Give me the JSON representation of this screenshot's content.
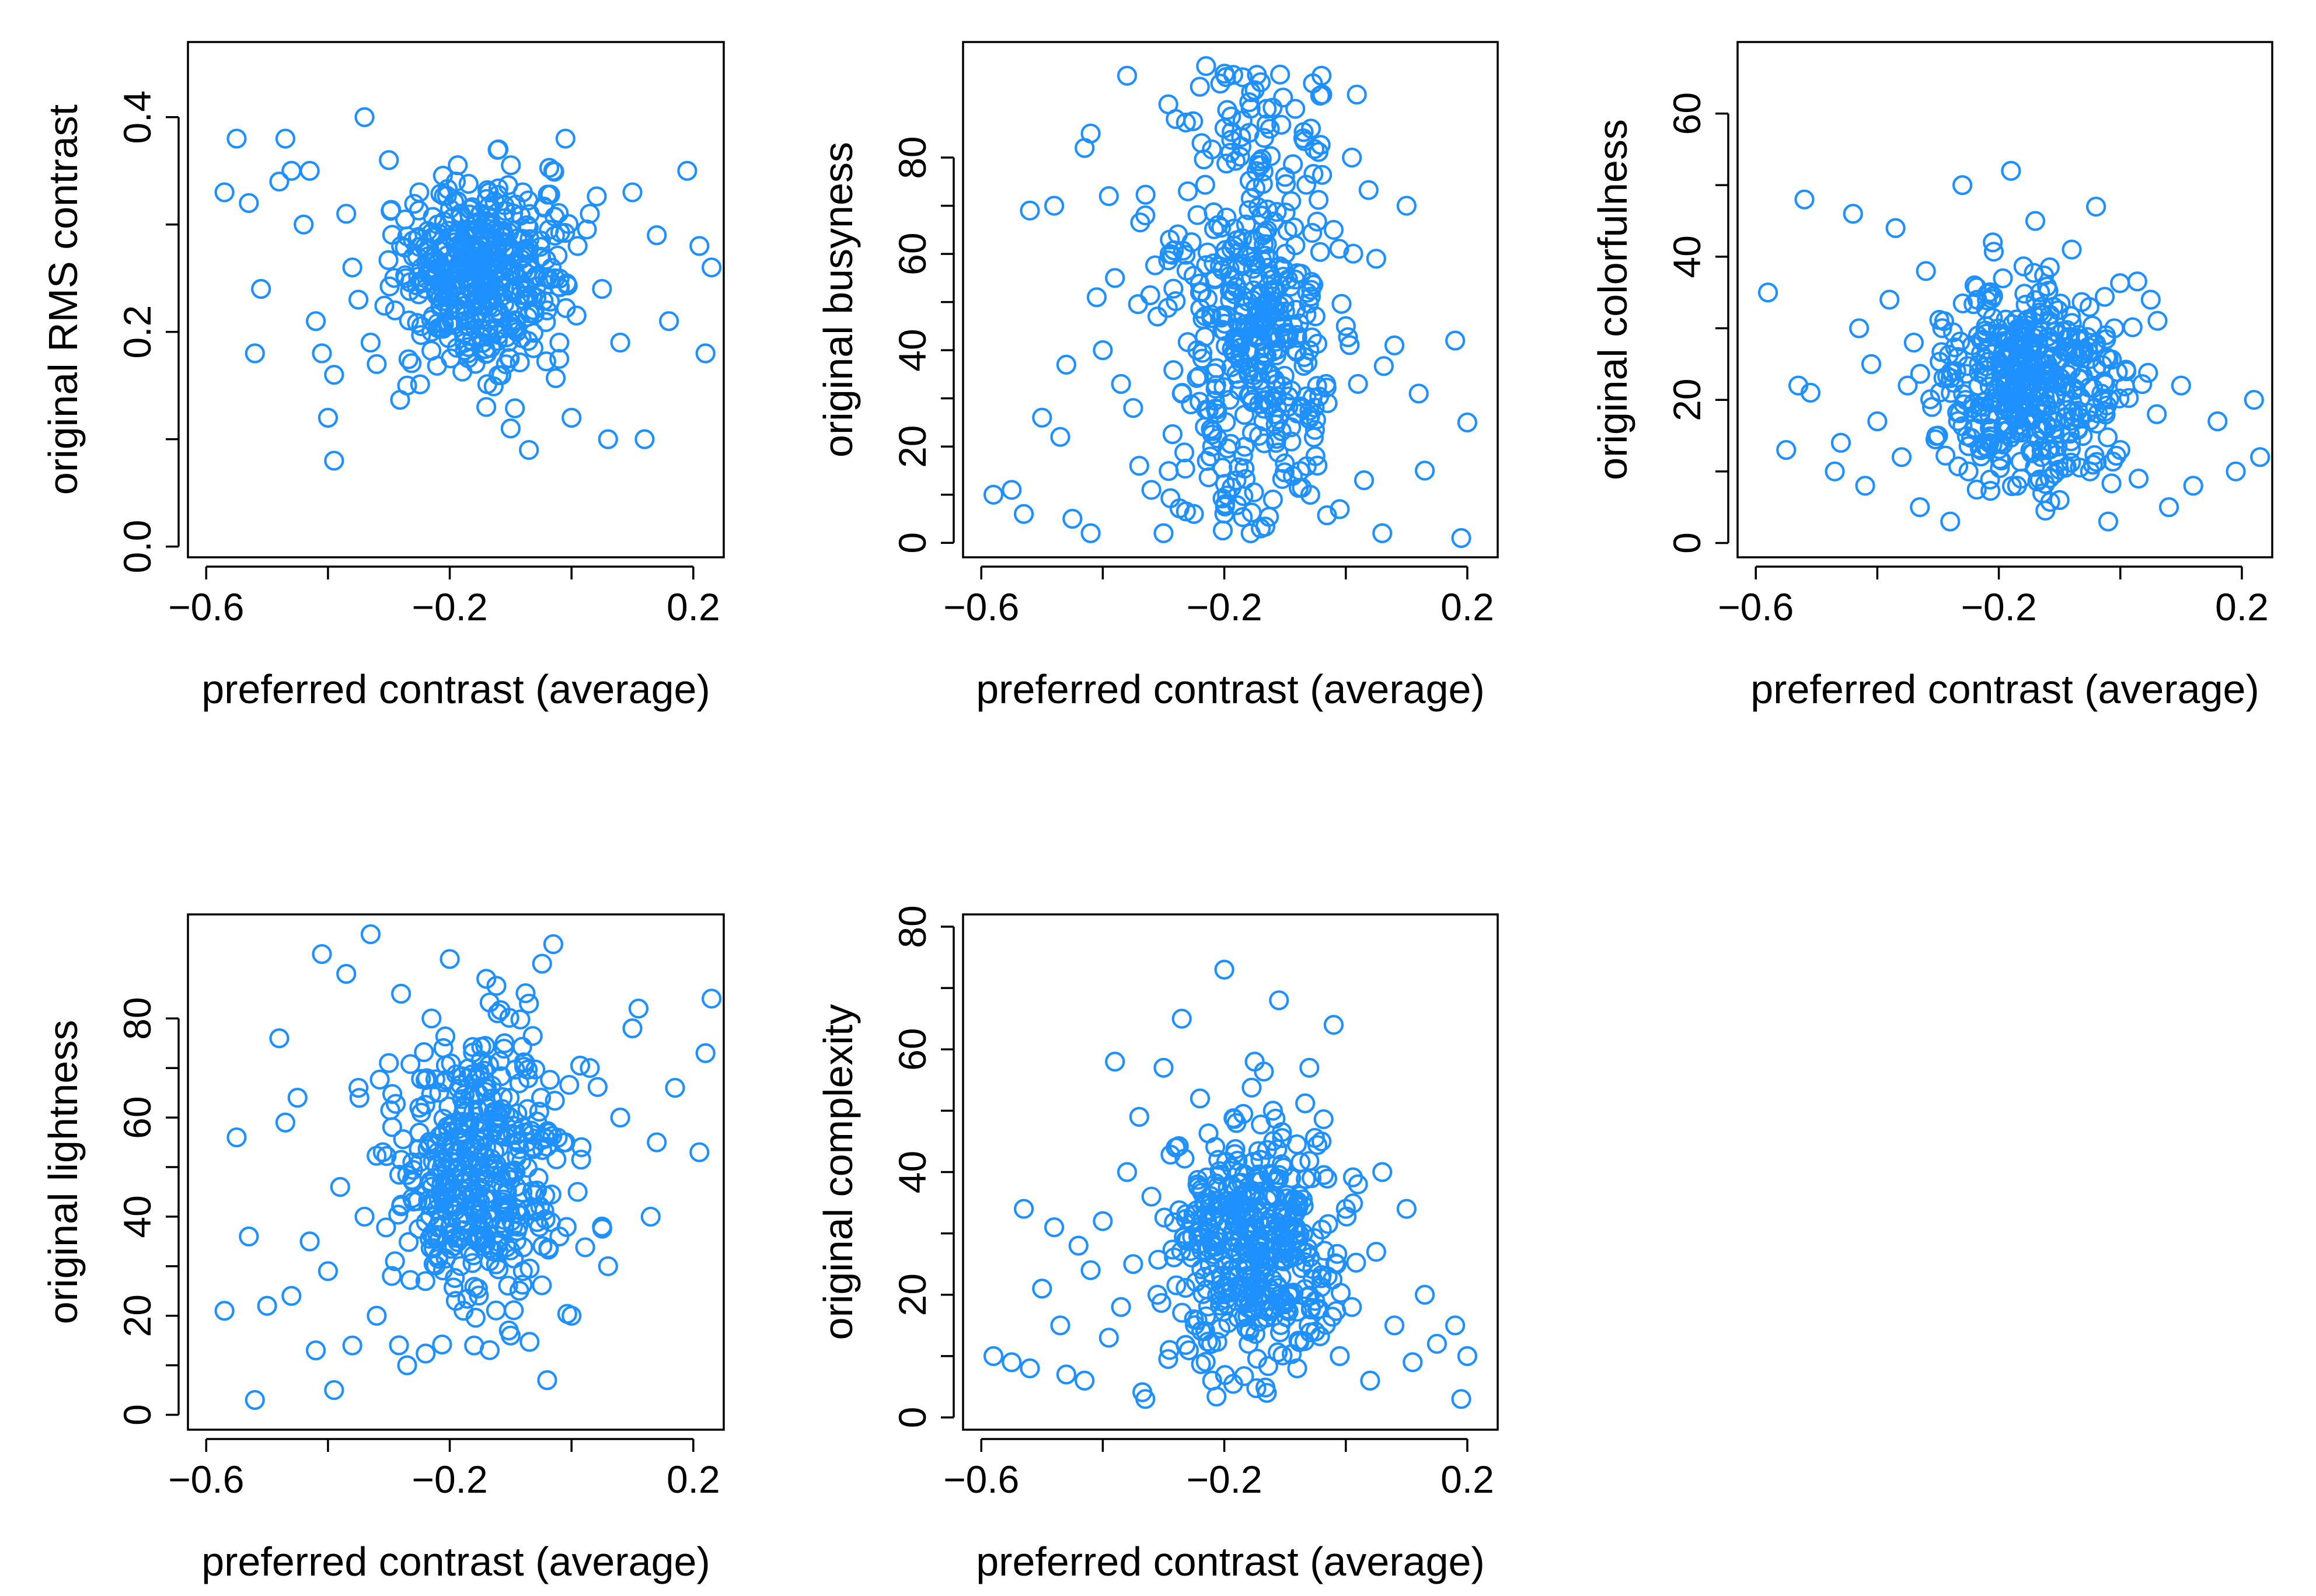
{
  "colors": {
    "point": "#1e90ff",
    "axis": "#000000",
    "background": "#ffffff"
  },
  "chart_data": [
    {
      "type": "scatter",
      "title": "",
      "xlabel": "preferred contrast (average)",
      "ylabel": "original RMS contrast",
      "xlim": [
        -0.63,
        0.25
      ],
      "ylim": [
        -0.01,
        0.47
      ],
      "xticks": [
        -0.6,
        -0.2,
        0.2
      ],
      "xtick_labels": [
        "−0.6",
        "−0.2",
        "0.2"
      ],
      "yticks": [
        0.0,
        0.2,
        0.4
      ],
      "ytick_labels": [
        "0.0",
        "0.2",
        "0.4"
      ],
      "sampled_points": [
        [
          -0.57,
          0.33
        ],
        [
          -0.55,
          0.38
        ],
        [
          -0.53,
          0.32
        ],
        [
          -0.52,
          0.18
        ],
        [
          -0.51,
          0.24
        ],
        [
          -0.48,
          0.34
        ],
        [
          -0.47,
          0.38
        ],
        [
          -0.46,
          0.35
        ],
        [
          -0.44,
          0.3
        ],
        [
          -0.43,
          0.35
        ],
        [
          -0.42,
          0.21
        ],
        [
          -0.41,
          0.18
        ],
        [
          -0.4,
          0.12
        ],
        [
          -0.39,
          0.08
        ],
        [
          -0.39,
          0.16
        ],
        [
          -0.37,
          0.31
        ],
        [
          -0.36,
          0.26
        ],
        [
          -0.35,
          0.23
        ],
        [
          -0.34,
          0.4
        ],
        [
          -0.33,
          0.19
        ],
        [
          -0.32,
          0.17
        ],
        [
          -0.3,
          0.36
        ],
        [
          -0.29,
          0.22
        ],
        [
          -0.28,
          0.28
        ],
        [
          -0.27,
          0.15
        ],
        [
          -0.26,
          0.27
        ],
        [
          -0.25,
          0.33
        ],
        [
          -0.24,
          0.24
        ],
        [
          -0.23,
          0.2
        ],
        [
          -0.22,
          0.3
        ],
        [
          -0.21,
          0.25
        ],
        [
          -0.2,
          0.22
        ],
        [
          -0.19,
          0.34
        ],
        [
          -0.18,
          0.28
        ],
        [
          -0.17,
          0.18
        ],
        [
          -0.16,
          0.26
        ],
        [
          -0.15,
          0.31
        ],
        [
          -0.14,
          0.13
        ],
        [
          -0.13,
          0.23
        ],
        [
          -0.12,
          0.37
        ],
        [
          -0.11,
          0.29
        ],
        [
          -0.1,
          0.11
        ],
        [
          -0.09,
          0.2
        ],
        [
          -0.08,
          0.33
        ],
        [
          -0.07,
          0.09
        ],
        [
          -0.06,
          0.25
        ],
        [
          -0.05,
          0.27
        ],
        [
          -0.04,
          0.22
        ],
        [
          -0.03,
          0.35
        ],
        [
          -0.02,
          0.19
        ],
        [
          -0.01,
          0.38
        ],
        [
          0.0,
          0.12
        ],
        [
          0.01,
          0.28
        ],
        [
          0.03,
          0.31
        ],
        [
          0.05,
          0.24
        ],
        [
          0.06,
          0.1
        ],
        [
          0.08,
          0.19
        ],
        [
          0.1,
          0.33
        ],
        [
          0.12,
          0.1
        ],
        [
          0.14,
          0.29
        ],
        [
          0.16,
          0.21
        ],
        [
          0.19,
          0.35
        ],
        [
          0.21,
          0.28
        ],
        [
          0.22,
          0.18
        ],
        [
          0.23,
          0.26
        ]
      ]
    },
    {
      "type": "scatter",
      "title": "",
      "xlabel": "preferred contrast (average)",
      "ylabel": "original busyness",
      "xlim": [
        -0.63,
        0.25
      ],
      "ylim": [
        -3,
        104
      ],
      "xticks": [
        -0.6,
        -0.2,
        0.2
      ],
      "xtick_labels": [
        "−0.6",
        "−0.2",
        "0.2"
      ],
      "yticks": [
        0,
        20,
        40,
        60,
        80
      ],
      "ytick_labels": [
        "0",
        "20",
        "40",
        "60",
        "80"
      ],
      "sampled_points": [
        [
          -0.58,
          10
        ],
        [
          -0.55,
          11
        ],
        [
          -0.53,
          6
        ],
        [
          -0.52,
          69
        ],
        [
          -0.5,
          26
        ],
        [
          -0.48,
          70
        ],
        [
          -0.47,
          22
        ],
        [
          -0.46,
          37
        ],
        [
          -0.45,
          5
        ],
        [
          -0.43,
          82
        ],
        [
          -0.42,
          85
        ],
        [
          -0.42,
          2
        ],
        [
          -0.41,
          51
        ],
        [
          -0.4,
          40
        ],
        [
          -0.39,
          72
        ],
        [
          -0.38,
          55
        ],
        [
          -0.37,
          33
        ],
        [
          -0.36,
          97
        ],
        [
          -0.35,
          28
        ],
        [
          -0.34,
          16
        ],
        [
          -0.33,
          68
        ],
        [
          -0.32,
          11
        ],
        [
          -0.31,
          47
        ],
        [
          -0.3,
          2
        ],
        [
          -0.29,
          60
        ],
        [
          -0.28,
          88
        ],
        [
          -0.27,
          31
        ],
        [
          -0.26,
          73
        ],
        [
          -0.25,
          6
        ],
        [
          -0.24,
          52
        ],
        [
          -0.23,
          99
        ],
        [
          -0.22,
          20
        ],
        [
          -0.21,
          66
        ],
        [
          -0.2,
          44
        ],
        [
          -0.19,
          81
        ],
        [
          -0.18,
          13
        ],
        [
          -0.17,
          58
        ],
        [
          -0.16,
          35
        ],
        [
          -0.15,
          94
        ],
        [
          -0.14,
          3
        ],
        [
          -0.13,
          62
        ],
        [
          -0.12,
          9
        ],
        [
          -0.11,
          48
        ],
        [
          -0.1,
          76
        ],
        [
          -0.09,
          24
        ],
        [
          -0.08,
          56
        ],
        [
          -0.07,
          84
        ],
        [
          -0.06,
          40
        ],
        [
          -0.05,
          18
        ],
        [
          -0.04,
          97
        ],
        [
          -0.03,
          29
        ],
        [
          -0.02,
          65
        ],
        [
          -0.01,
          7
        ],
        [
          0.0,
          45
        ],
        [
          0.01,
          80
        ],
        [
          0.02,
          33
        ],
        [
          0.03,
          13
        ],
        [
          0.05,
          59
        ],
        [
          0.06,
          2
        ],
        [
          0.08,
          41
        ],
        [
          0.1,
          70
        ],
        [
          0.12,
          31
        ],
        [
          0.13,
          15
        ],
        [
          0.18,
          42
        ],
        [
          0.19,
          1
        ],
        [
          0.2,
          25
        ]
      ]
    },
    {
      "type": "scatter",
      "title": "",
      "xlabel": "preferred contrast (average)",
      "ylabel": "original colorfulness",
      "xlim": [
        -0.63,
        0.25
      ],
      "ylim": [
        -2,
        70
      ],
      "xticks": [
        -0.6,
        -0.2,
        0.2
      ],
      "xtick_labels": [
        "−0.6",
        "−0.2",
        "0.2"
      ],
      "yticks": [
        0,
        20,
        40,
        60
      ],
      "ytick_labels": [
        "0",
        "20",
        "40",
        "60"
      ],
      "sampled_points": [
        [
          -0.58,
          35
        ],
        [
          -0.55,
          13
        ],
        [
          -0.53,
          22
        ],
        [
          -0.52,
          48
        ],
        [
          -0.51,
          21
        ],
        [
          -0.47,
          10
        ],
        [
          -0.46,
          14
        ],
        [
          -0.44,
          46
        ],
        [
          -0.43,
          30
        ],
        [
          -0.42,
          8
        ],
        [
          -0.41,
          25
        ],
        [
          -0.4,
          17
        ],
        [
          -0.38,
          34
        ],
        [
          -0.37,
          44
        ],
        [
          -0.36,
          12
        ],
        [
          -0.35,
          22
        ],
        [
          -0.34,
          28
        ],
        [
          -0.33,
          5
        ],
        [
          -0.32,
          38
        ],
        [
          -0.31,
          19
        ],
        [
          -0.3,
          15
        ],
        [
          -0.29,
          31
        ],
        [
          -0.28,
          3
        ],
        [
          -0.27,
          24
        ],
        [
          -0.26,
          50
        ],
        [
          -0.25,
          10
        ],
        [
          -0.24,
          36
        ],
        [
          -0.23,
          18
        ],
        [
          -0.22,
          27
        ],
        [
          -0.21,
          42
        ],
        [
          -0.2,
          14
        ],
        [
          -0.19,
          22
        ],
        [
          -0.18,
          52
        ],
        [
          -0.17,
          8
        ],
        [
          -0.16,
          30
        ],
        [
          -0.15,
          19
        ],
        [
          -0.14,
          45
        ],
        [
          -0.13,
          12
        ],
        [
          -0.12,
          25
        ],
        [
          -0.11,
          33
        ],
        [
          -0.1,
          6
        ],
        [
          -0.09,
          21
        ],
        [
          -0.08,
          41
        ],
        [
          -0.07,
          16
        ],
        [
          -0.06,
          27
        ],
        [
          -0.05,
          10
        ],
        [
          -0.04,
          47
        ],
        [
          -0.03,
          20
        ],
        [
          -0.02,
          3
        ],
        [
          -0.01,
          30
        ],
        [
          0.0,
          13
        ],
        [
          0.01,
          24
        ],
        [
          0.03,
          9
        ],
        [
          0.05,
          34
        ],
        [
          0.06,
          18
        ],
        [
          0.08,
          5
        ],
        [
          0.1,
          22
        ],
        [
          0.12,
          8
        ],
        [
          0.16,
          17
        ],
        [
          0.19,
          10
        ],
        [
          0.22,
          20
        ],
        [
          0.23,
          12
        ]
      ]
    },
    {
      "type": "scatter",
      "title": "",
      "xlabel": "preferred contrast (average)",
      "ylabel": "original lightness",
      "xlim": [
        -0.63,
        0.25
      ],
      "ylim": [
        -3,
        101
      ],
      "xticks": [
        -0.6,
        -0.2,
        0.2
      ],
      "xtick_labels": [
        "−0.6",
        "−0.2",
        "0.2"
      ],
      "yticks": [
        0,
        20,
        40,
        60,
        80
      ],
      "ytick_labels": [
        "0",
        "20",
        "40",
        "60",
        "80"
      ],
      "sampled_points": [
        [
          -0.57,
          21
        ],
        [
          -0.55,
          56
        ],
        [
          -0.53,
          36
        ],
        [
          -0.52,
          3
        ],
        [
          -0.5,
          22
        ],
        [
          -0.48,
          76
        ],
        [
          -0.47,
          59
        ],
        [
          -0.46,
          24
        ],
        [
          -0.45,
          64
        ],
        [
          -0.43,
          35
        ],
        [
          -0.42,
          13
        ],
        [
          -0.41,
          93
        ],
        [
          -0.4,
          29
        ],
        [
          -0.39,
          5
        ],
        [
          -0.38,
          46
        ],
        [
          -0.37,
          89
        ],
        [
          -0.36,
          14
        ],
        [
          -0.35,
          66
        ],
        [
          -0.34,
          40
        ],
        [
          -0.33,
          97
        ],
        [
          -0.32,
          20
        ],
        [
          -0.31,
          53
        ],
        [
          -0.3,
          71
        ],
        [
          -0.29,
          31
        ],
        [
          -0.28,
          85
        ],
        [
          -0.27,
          10
        ],
        [
          -0.26,
          47
        ],
        [
          -0.25,
          62
        ],
        [
          -0.24,
          27
        ],
        [
          -0.23,
          80
        ],
        [
          -0.22,
          38
        ],
        [
          -0.21,
          57
        ],
        [
          -0.2,
          92
        ],
        [
          -0.19,
          23
        ],
        [
          -0.18,
          49
        ],
        [
          -0.17,
          68
        ],
        [
          -0.16,
          14
        ],
        [
          -0.15,
          43
        ],
        [
          -0.14,
          88
        ],
        [
          -0.13,
          33
        ],
        [
          -0.12,
          60
        ],
        [
          -0.11,
          75
        ],
        [
          -0.1,
          16
        ],
        [
          -0.09,
          52
        ],
        [
          -0.08,
          29
        ],
        [
          -0.07,
          83
        ],
        [
          -0.06,
          41
        ],
        [
          -0.05,
          64
        ],
        [
          -0.04,
          7
        ],
        [
          -0.03,
          95
        ],
        [
          -0.02,
          36
        ],
        [
          -0.01,
          55
        ],
        [
          0.0,
          20
        ],
        [
          0.01,
          45
        ],
        [
          0.03,
          70
        ],
        [
          0.05,
          38
        ],
        [
          0.06,
          30
        ],
        [
          0.08,
          60
        ],
        [
          0.1,
          78
        ],
        [
          0.11,
          82
        ],
        [
          0.13,
          40
        ],
        [
          0.14,
          55
        ],
        [
          0.17,
          66
        ],
        [
          0.21,
          53
        ],
        [
          0.22,
          73
        ],
        [
          0.23,
          84
        ]
      ]
    },
    {
      "type": "scatter",
      "title": "",
      "xlabel": "preferred contrast (average)",
      "ylabel": "original complexity",
      "xlim": [
        -0.63,
        0.25
      ],
      "ylim": [
        -2,
        82
      ],
      "xticks": [
        -0.6,
        -0.2,
        0.2
      ],
      "xtick_labels": [
        "−0.6",
        "−0.2",
        "0.2"
      ],
      "yticks": [
        0,
        20,
        40,
        60,
        80
      ],
      "ytick_labels": [
        "0",
        "20",
        "40",
        "60",
        "80"
      ],
      "sampled_points": [
        [
          -0.58,
          10
        ],
        [
          -0.55,
          9
        ],
        [
          -0.53,
          34
        ],
        [
          -0.52,
          8
        ],
        [
          -0.5,
          21
        ],
        [
          -0.48,
          31
        ],
        [
          -0.47,
          15
        ],
        [
          -0.46,
          7
        ],
        [
          -0.44,
          28
        ],
        [
          -0.43,
          6
        ],
        [
          -0.42,
          24
        ],
        [
          -0.4,
          32
        ],
        [
          -0.39,
          13
        ],
        [
          -0.38,
          58
        ],
        [
          -0.37,
          18
        ],
        [
          -0.36,
          40
        ],
        [
          -0.35,
          25
        ],
        [
          -0.34,
          49
        ],
        [
          -0.33,
          3
        ],
        [
          -0.32,
          36
        ],
        [
          -0.31,
          20
        ],
        [
          -0.3,
          57
        ],
        [
          -0.29,
          11
        ],
        [
          -0.28,
          44
        ],
        [
          -0.27,
          65
        ],
        [
          -0.26,
          29
        ],
        [
          -0.25,
          16
        ],
        [
          -0.24,
          52
        ],
        [
          -0.23,
          33
        ],
        [
          -0.22,
          6
        ],
        [
          -0.21,
          42
        ],
        [
          -0.2,
          73
        ],
        [
          -0.19,
          23
        ],
        [
          -0.18,
          48
        ],
        [
          -0.17,
          36
        ],
        [
          -0.16,
          12
        ],
        [
          -0.15,
          58
        ],
        [
          -0.14,
          27
        ],
        [
          -0.13,
          4
        ],
        [
          -0.12,
          50
        ],
        [
          -0.11,
          68
        ],
        [
          -0.1,
          19
        ],
        [
          -0.09,
          39
        ],
        [
          -0.08,
          8
        ],
        [
          -0.07,
          30
        ],
        [
          -0.06,
          57
        ],
        [
          -0.05,
          14
        ],
        [
          -0.04,
          45
        ],
        [
          -0.03,
          23
        ],
        [
          -0.02,
          64
        ],
        [
          -0.01,
          10
        ],
        [
          0.0,
          34
        ],
        [
          0.01,
          18
        ],
        [
          0.02,
          38
        ],
        [
          0.04,
          6
        ],
        [
          0.05,
          27
        ],
        [
          0.06,
          40
        ],
        [
          0.08,
          15
        ],
        [
          0.1,
          34
        ],
        [
          0.11,
          9
        ],
        [
          0.13,
          20
        ],
        [
          0.15,
          12
        ],
        [
          0.18,
          15
        ],
        [
          0.19,
          3
        ],
        [
          0.2,
          10
        ]
      ]
    }
  ]
}
